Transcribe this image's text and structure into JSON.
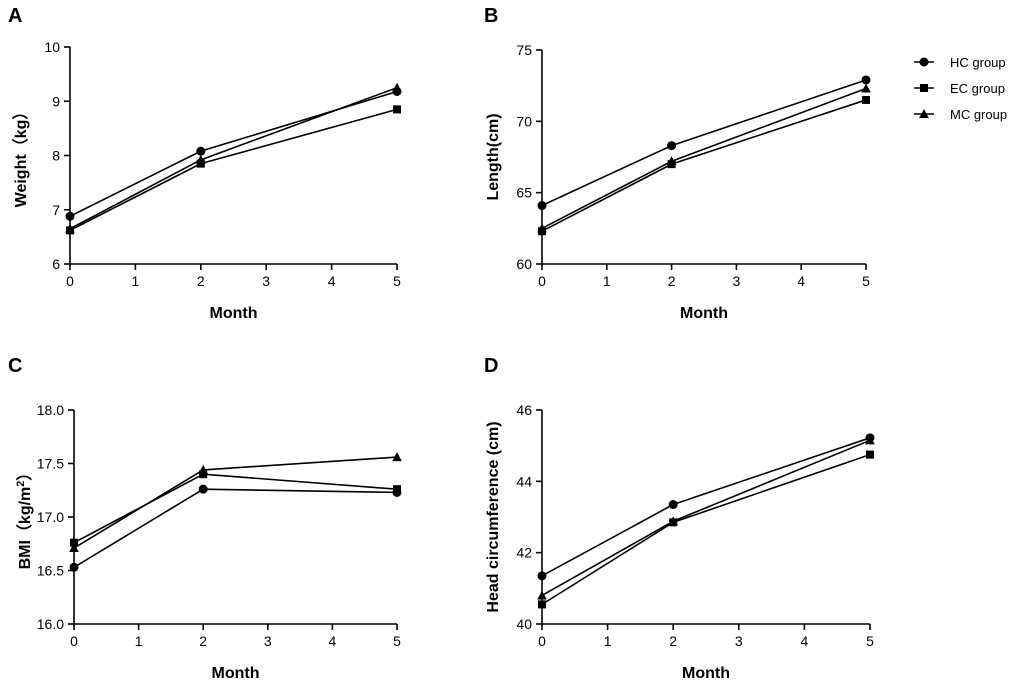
{
  "legend": {
    "entries": [
      {
        "name": "HC group",
        "marker": "circle"
      },
      {
        "name": "EC group",
        "marker": "square"
      },
      {
        "name": "MC group",
        "marker": "triangle"
      }
    ]
  },
  "colors": {
    "line": "#000000",
    "background": "#ffffff"
  },
  "chart_data": [
    {
      "panel": "A",
      "type": "line",
      "title": "",
      "xlabel": "Month",
      "ylabel": "Weight（kg）",
      "x": [
        0,
        2,
        5
      ],
      "xlim": [
        0,
        5
      ],
      "ylim": [
        6,
        10
      ],
      "xticks": [
        "0",
        "1",
        "2",
        "3",
        "4",
        "5"
      ],
      "yticks": [
        "6",
        "7",
        "8",
        "9",
        "10"
      ],
      "grid": false,
      "series": [
        {
          "name": "HC group",
          "marker": "circle",
          "values": [
            6.88,
            8.08,
            9.18
          ]
        },
        {
          "name": "EC group",
          "marker": "square",
          "values": [
            6.62,
            7.85,
            8.85
          ]
        },
        {
          "name": "MC group",
          "marker": "triangle",
          "values": [
            6.65,
            7.92,
            9.25
          ]
        }
      ]
    },
    {
      "panel": "B",
      "type": "line",
      "title": "",
      "xlabel": "Month",
      "ylabel": "Length(cm)",
      "x": [
        0,
        2,
        5
      ],
      "xlim": [
        0,
        5
      ],
      "ylim": [
        60,
        75
      ],
      "xticks": [
        "0",
        "1",
        "2",
        "3",
        "4",
        "5"
      ],
      "yticks": [
        "60",
        "65",
        "70",
        "75"
      ],
      "grid": false,
      "legend": "top-right",
      "series": [
        {
          "name": "HC group",
          "marker": "circle",
          "values": [
            64.1,
            68.3,
            72.9
          ]
        },
        {
          "name": "EC group",
          "marker": "square",
          "values": [
            62.3,
            67.0,
            71.5
          ]
        },
        {
          "name": "MC group",
          "marker": "triangle",
          "values": [
            62.5,
            67.2,
            72.3
          ]
        }
      ]
    },
    {
      "panel": "C",
      "type": "line",
      "title": "",
      "xlabel": "Month",
      "ylabel": "BMI（kg/m",
      "ylabel_sup": "2",
      "ylabel_close": "）",
      "x": [
        0,
        2,
        5
      ],
      "xlim": [
        0,
        5
      ],
      "ylim": [
        16.0,
        18.0
      ],
      "xticks": [
        "0",
        "1",
        "2",
        "3",
        "4",
        "5"
      ],
      "yticks": [
        "16.0",
        "16.5",
        "17.0",
        "17.5",
        "18.0"
      ],
      "grid": false,
      "series": [
        {
          "name": "HC group",
          "marker": "circle",
          "values": [
            16.53,
            17.26,
            17.23
          ]
        },
        {
          "name": "EC group",
          "marker": "square",
          "values": [
            16.76,
            17.4,
            17.26
          ]
        },
        {
          "name": "MC group",
          "marker": "triangle",
          "values": [
            16.71,
            17.44,
            17.56
          ]
        }
      ]
    },
    {
      "panel": "D",
      "type": "line",
      "title": "",
      "xlabel": "Month",
      "ylabel": "Head circumference (cm)",
      "x": [
        0,
        2,
        5
      ],
      "xlim": [
        0,
        5
      ],
      "ylim": [
        40,
        46
      ],
      "xticks": [
        "0",
        "1",
        "2",
        "3",
        "4",
        "5"
      ],
      "yticks": [
        "40",
        "42",
        "44",
        "46"
      ],
      "grid": false,
      "series": [
        {
          "name": "HC group",
          "marker": "circle",
          "values": [
            41.35,
            43.35,
            45.22
          ]
        },
        {
          "name": "EC group",
          "marker": "square",
          "values": [
            40.55,
            42.85,
            44.75
          ]
        },
        {
          "name": "MC group",
          "marker": "triangle",
          "values": [
            40.8,
            42.88,
            45.15
          ]
        }
      ]
    }
  ]
}
